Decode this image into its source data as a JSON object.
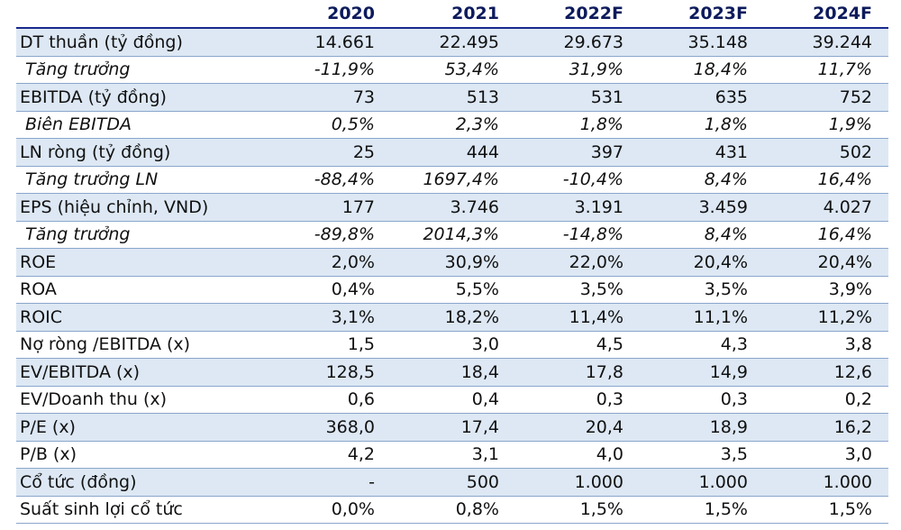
{
  "table": {
    "headers": [
      "",
      "2020",
      "2021",
      "2022F",
      "2023F",
      "2024F"
    ],
    "rows": [
      {
        "label": "DT thuần (tỷ đồng)",
        "values": [
          "14.661",
          "22.495",
          "29.673",
          "35.148",
          "39.244"
        ],
        "italic": false,
        "shaded": true
      },
      {
        "label": "Tăng trưởng",
        "values": [
          "-11,9%",
          "53,4%",
          "31,9%",
          "18,4%",
          "11,7%"
        ],
        "italic": true,
        "shaded": false
      },
      {
        "label": "EBITDA (tỷ đồng)",
        "values": [
          "73",
          "513",
          "531",
          "635",
          "752"
        ],
        "italic": false,
        "shaded": true
      },
      {
        "label": "Biên EBITDA",
        "values": [
          "0,5%",
          "2,3%",
          "1,8%",
          "1,8%",
          "1,9%"
        ],
        "italic": true,
        "shaded": false
      },
      {
        "label": "LN ròng (tỷ đồng)",
        "values": [
          "25",
          "444",
          "397",
          "431",
          "502"
        ],
        "italic": false,
        "shaded": true
      },
      {
        "label": "Tăng trưởng LN",
        "values": [
          "-88,4%",
          "1697,4%",
          "-10,4%",
          "8,4%",
          "16,4%"
        ],
        "italic": true,
        "shaded": false
      },
      {
        "label": "EPS (hiệu chỉnh, VND)",
        "values": [
          "177",
          "3.746",
          "3.191",
          "3.459",
          "4.027"
        ],
        "italic": false,
        "shaded": true
      },
      {
        "label": "Tăng trưởng",
        "values": [
          "-89,8%",
          "2014,3%",
          "-14,8%",
          "8,4%",
          "16,4%"
        ],
        "italic": true,
        "shaded": false
      },
      {
        "label": "ROE",
        "values": [
          "2,0%",
          "30,9%",
          "22,0%",
          "20,4%",
          "20,4%"
        ],
        "italic": false,
        "shaded": true
      },
      {
        "label": "ROA",
        "values": [
          "0,4%",
          "5,5%",
          "3,5%",
          "3,5%",
          "3,9%"
        ],
        "italic": false,
        "shaded": false
      },
      {
        "label": "ROIC",
        "values": [
          "3,1%",
          "18,2%",
          "11,4%",
          "11,1%",
          "11,2%"
        ],
        "italic": false,
        "shaded": true
      },
      {
        "label": "Nợ ròng /EBITDA (x)",
        "values": [
          "1,5",
          "3,0",
          "4,5",
          "4,3",
          "3,8"
        ],
        "italic": false,
        "shaded": false
      },
      {
        "label": "EV/EBITDA (x)",
        "values": [
          "128,5",
          "18,4",
          "17,8",
          "14,9",
          "12,6"
        ],
        "italic": false,
        "shaded": true
      },
      {
        "label": "EV/Doanh thu (x)",
        "values": [
          "0,6",
          "0,4",
          "0,3",
          "0,3",
          "0,2"
        ],
        "italic": false,
        "shaded": false
      },
      {
        "label": "P/E (x)",
        "values": [
          "368,0",
          "17,4",
          "20,4",
          "18,9",
          "16,2"
        ],
        "italic": false,
        "shaded": true
      },
      {
        "label": "P/B (x)",
        "values": [
          "4,2",
          "3,1",
          "4,0",
          "3,5",
          "3,0"
        ],
        "italic": false,
        "shaded": false
      },
      {
        "label": "Cổ tức (đồng)",
        "values": [
          "-",
          "500",
          "1.000",
          "1.000",
          "1.000"
        ],
        "italic": false,
        "shaded": true
      },
      {
        "label": "Suất sinh lợi cổ tức",
        "values": [
          "0,0%",
          "0,8%",
          "1,5%",
          "1,5%",
          "1,5%"
        ],
        "italic": false,
        "shaded": false
      }
    ]
  }
}
